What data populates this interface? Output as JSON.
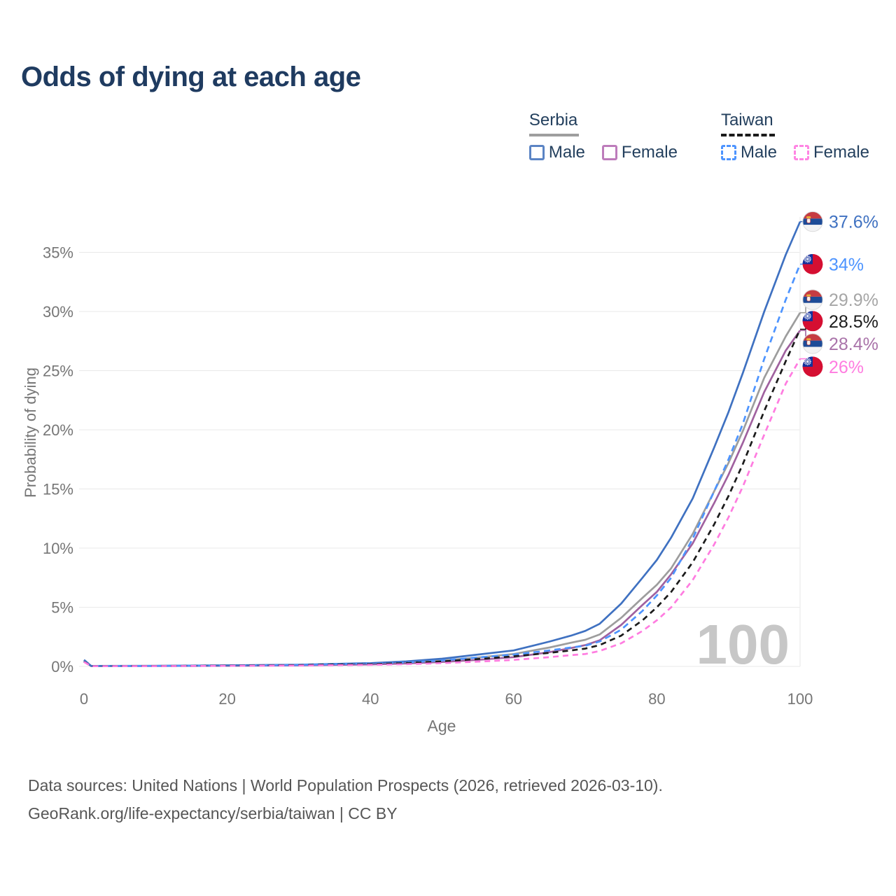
{
  "title": "Odds of dying at each age",
  "legend": {
    "groups": [
      {
        "country": "Serbia",
        "underline_style": "solid",
        "underline_color": "#9e9e9e",
        "items": [
          {
            "label": "Male",
            "color": "#5b84c4",
            "dash": false
          },
          {
            "label": "Female",
            "color": "#bd7cbb",
            "dash": false
          }
        ]
      },
      {
        "country": "Taiwan",
        "underline_style": "dashed",
        "underline_color": "#1b1b1b",
        "items": [
          {
            "label": "Male",
            "color": "#4d94ff",
            "dash": true
          },
          {
            "label": "Female",
            "color": "#ff85e3",
            "dash": true
          }
        ]
      }
    ]
  },
  "chart_data": {
    "type": "line",
    "title": "Odds of dying at each age",
    "xlabel": "Age",
    "ylabel": "Probability of dying",
    "xlim": [
      0,
      100
    ],
    "ylim_percent": [
      0,
      38
    ],
    "x_ticks": [
      0,
      20,
      40,
      60,
      80,
      100
    ],
    "y_tick_values": [
      0,
      5,
      10,
      15,
      20,
      25,
      30,
      35
    ],
    "y_tick_suffix": "%",
    "grid": "horizontal",
    "watermark": "100",
    "x": [
      0,
      1,
      10,
      20,
      30,
      40,
      45,
      50,
      55,
      60,
      65,
      68,
      70,
      72,
      75,
      78,
      80,
      82,
      85,
      88,
      90,
      92,
      95,
      98,
      100
    ],
    "series": [
      {
        "id": "serbia-male",
        "name": "Serbia Male",
        "country": "Serbia",
        "flag": "serbia",
        "color": "#3f71c1",
        "dash": null,
        "width": 2.7,
        "end_label": "37.6%",
        "end_value_percent": 37.6,
        "values": [
          0.55,
          0.04,
          0.05,
          0.09,
          0.14,
          0.28,
          0.42,
          0.65,
          1.0,
          1.35,
          2.1,
          2.6,
          3.0,
          3.6,
          5.3,
          7.5,
          9.0,
          10.9,
          14.2,
          18.5,
          21.5,
          24.8,
          30.0,
          34.8,
          37.6
        ]
      },
      {
        "id": "taiwan-male",
        "name": "Taiwan Male",
        "country": "Taiwan",
        "flag": "taiwan",
        "color": "#4d94ff",
        "dash": "9 6",
        "width": 2.7,
        "end_label": "34%",
        "end_value_percent": 34,
        "values": [
          0.45,
          0.03,
          0.04,
          0.07,
          0.12,
          0.24,
          0.34,
          0.5,
          0.75,
          1.0,
          1.35,
          1.6,
          1.75,
          2.1,
          3.1,
          4.7,
          6.0,
          7.5,
          10.8,
          14.8,
          17.5,
          20.5,
          26.0,
          31.0,
          34.0
        ]
      },
      {
        "id": "serbia-total",
        "name": "Serbia",
        "country": "Serbia",
        "flag": "serbia",
        "color": "#9d9d9d",
        "dash": null,
        "width": 2.7,
        "end_label": "29.9%",
        "end_value_percent": 29.9,
        "label_color": "#a6a6a6",
        "values": [
          0.5,
          0.035,
          0.045,
          0.08,
          0.12,
          0.23,
          0.33,
          0.5,
          0.75,
          1.05,
          1.6,
          2.0,
          2.25,
          2.7,
          4.1,
          5.8,
          6.9,
          8.3,
          11.2,
          14.8,
          17.2,
          19.9,
          24.4,
          27.9,
          29.9
        ]
      },
      {
        "id": "taiwan-total",
        "name": "Taiwan",
        "country": "Taiwan",
        "flag": "taiwan",
        "color": "#1b1b1b",
        "dash": "8 6",
        "width": 2.7,
        "end_label": "28.5%",
        "end_value_percent": 28.5,
        "values": [
          0.4,
          0.025,
          0.03,
          0.06,
          0.1,
          0.19,
          0.28,
          0.42,
          0.62,
          0.85,
          1.15,
          1.35,
          1.5,
          1.8,
          2.6,
          3.9,
          5.0,
          6.3,
          8.8,
          12.0,
          14.4,
          17.1,
          21.6,
          25.8,
          28.5
        ]
      },
      {
        "id": "serbia-female",
        "name": "Serbia Female",
        "country": "Serbia",
        "flag": "serbia",
        "color": "#a0619f",
        "dash": null,
        "width": 2.7,
        "end_label": "28.4%",
        "end_value_percent": 28.4,
        "label_color": "#a973a9",
        "values": [
          0.45,
          0.03,
          0.035,
          0.055,
          0.09,
          0.17,
          0.25,
          0.37,
          0.55,
          0.78,
          1.2,
          1.55,
          1.8,
          2.2,
          3.5,
          5.2,
          6.3,
          7.8,
          10.4,
          13.8,
          16.2,
          18.9,
          23.2,
          26.7,
          28.4
        ]
      },
      {
        "id": "taiwan-female",
        "name": "Taiwan Female",
        "country": "Taiwan",
        "flag": "taiwan",
        "color": "#ff7ce0",
        "dash": "8 6",
        "width": 2.7,
        "end_label": "26%",
        "end_value_percent": 26,
        "values": [
          0.38,
          0.02,
          0.025,
          0.045,
          0.07,
          0.13,
          0.19,
          0.28,
          0.4,
          0.55,
          0.78,
          0.95,
          1.05,
          1.3,
          1.95,
          3.0,
          3.9,
          5.0,
          7.3,
          10.3,
          12.6,
          15.2,
          19.6,
          23.9,
          26.0
        ]
      }
    ],
    "draw_order": [
      2,
      4,
      0,
      1,
      3,
      5
    ]
  },
  "footer": {
    "line1": "Data sources: United Nations | World Population Prospects (2026, retrieved 2026-03-10).",
    "line2": "GeoRank.org/life-expectancy/serbia/taiwan | CC BY"
  }
}
